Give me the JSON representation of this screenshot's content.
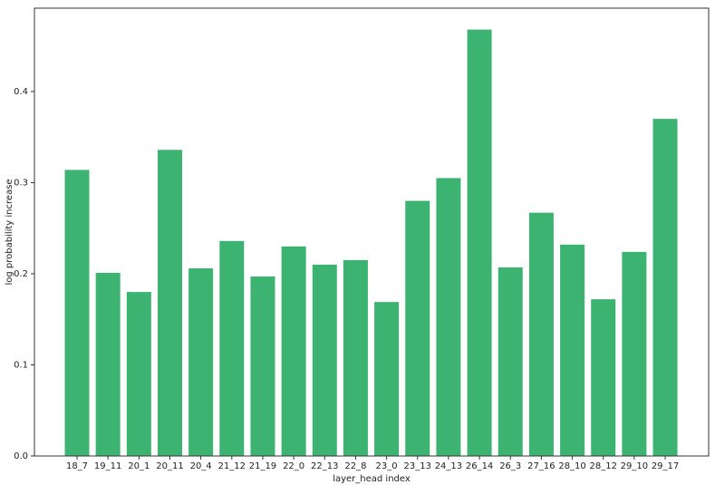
{
  "chart_data": {
    "type": "bar",
    "xlabel": "layer_head index",
    "ylabel": "log probability increase",
    "categories": [
      "18_7",
      "19_11",
      "20_1",
      "20_11",
      "20_4",
      "21_12",
      "21_19",
      "22_0",
      "22_13",
      "22_8",
      "23_0",
      "23_13",
      "24_13",
      "26_14",
      "26_3",
      "27_16",
      "28_10",
      "28_12",
      "29_10",
      "29_17"
    ],
    "values": [
      0.314,
      0.201,
      0.18,
      0.336,
      0.206,
      0.236,
      0.197,
      0.23,
      0.21,
      0.215,
      0.169,
      0.28,
      0.305,
      0.468,
      0.207,
      0.267,
      0.232,
      0.172,
      0.224,
      0.37
    ],
    "color": "#3cb371",
    "ylim": [
      0,
      0.4915
    ],
    "yticks": [
      {
        "value": 0,
        "label": "0.0"
      },
      0.1,
      0.2,
      0.3,
      0.4
    ]
  }
}
